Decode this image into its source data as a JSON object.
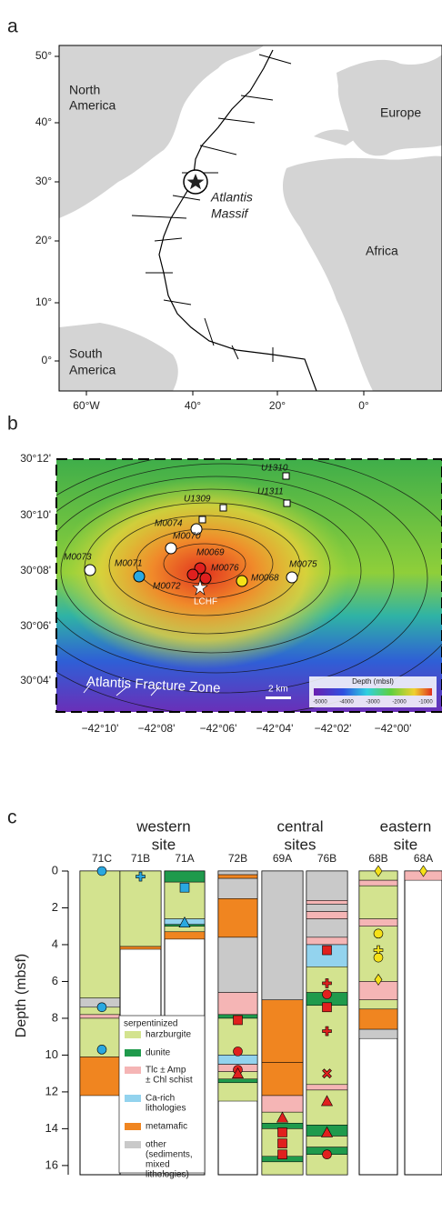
{
  "panel_a": {
    "label": "a",
    "yticks": [
      "50°",
      "40°",
      "30°",
      "20°",
      "10°",
      "0°"
    ],
    "xticks": [
      "60°W",
      "40°",
      "20°",
      "0°"
    ],
    "regions": [
      "North",
      "America",
      "Europe",
      "Africa",
      "South",
      "America"
    ],
    "site": [
      "Atlantis",
      "Massif"
    ]
  },
  "panel_b": {
    "label": "b",
    "yticks": [
      "30°12'",
      "30°10'",
      "30°08'",
      "30°06'",
      "30°04'"
    ],
    "xticks": [
      "−42°10'",
      "−42°08'",
      "−42°06'",
      "−42°04'",
      "−42°02'",
      "−42°00'"
    ],
    "sites": [
      "U1310",
      "U1311",
      "U1309",
      "M0074",
      "M0070",
      "M0069",
      "M0076",
      "M0068",
      "M0075",
      "M0073",
      "M0071",
      "M0072",
      "LCHF"
    ],
    "feature": "Atlantis Fracture Zone",
    "scale": "2 km",
    "legend_title": "Depth (mbsl)",
    "legend_ticks": [
      "-5000",
      "-4000",
      "-3000",
      "-2000",
      "-1000"
    ]
  },
  "chart_data": {
    "type": "lithology",
    "label": "c",
    "ylabel": "Depth (mbsf)",
    "ylim": [
      0,
      16.5
    ],
    "yticks": [
      0,
      2,
      4,
      6,
      8,
      10,
      12,
      14,
      16
    ],
    "groups": [
      [
        "western",
        "site"
      ],
      [
        "central",
        "sites"
      ],
      [
        "eastern",
        "site"
      ]
    ],
    "legend": {
      "title": "serpentinized",
      "items": [
        {
          "label": [
            "harzburgite"
          ],
          "color": "#d3e38f"
        },
        {
          "label": [
            "dunite"
          ],
          "color": "#1f9a4c"
        },
        {
          "label": [
            "Tlc ± Amp",
            "± Chl schist"
          ],
          "color": "#f5b5b5"
        },
        {
          "label": [
            "Ca-rich",
            "lithologies"
          ],
          "color": "#93d3ee"
        },
        {
          "label": [
            "metamafic"
          ],
          "color": "#f08520"
        },
        {
          "label": [
            "other",
            "(sediments,",
            "mixed",
            "lithologies)"
          ],
          "color": "#c9c9c9"
        }
      ]
    },
    "holes": [
      {
        "name": "71C",
        "intervals": [
          [
            0,
            6.9,
            0
          ],
          [
            6.9,
            7.4,
            5
          ],
          [
            7.4,
            7.8,
            0
          ],
          [
            7.8,
            8.0,
            2
          ],
          [
            8.0,
            10.1,
            0
          ],
          [
            10.1,
            12.2,
            4
          ]
        ],
        "markers": [
          {
            "depth": 0,
            "color": "#2aa8e0",
            "shape": "circle"
          },
          {
            "depth": 7.4,
            "color": "#2aa8e0",
            "shape": "circle"
          },
          {
            "depth": 9.7,
            "color": "#2aa8e0",
            "shape": "circle"
          }
        ]
      },
      {
        "name": "71B",
        "intervals": [
          [
            0,
            4.1,
            0
          ],
          [
            4.1,
            4.25,
            4
          ]
        ],
        "markers": [
          {
            "depth": 0.3,
            "color": "#2aa8e0",
            "shape": "cross"
          }
        ]
      },
      {
        "name": "71A",
        "intervals": [
          [
            0,
            0.6,
            1
          ],
          [
            0.6,
            2.6,
            0
          ],
          [
            2.6,
            2.9,
            3
          ],
          [
            2.9,
            3.0,
            1
          ],
          [
            3.0,
            3.3,
            0
          ],
          [
            3.3,
            3.7,
            4
          ]
        ],
        "markers": [
          {
            "depth": 0.9,
            "color": "#2aa8e0",
            "shape": "square"
          },
          {
            "depth": 2.8,
            "color": "#2aa8e0",
            "shape": "triangle"
          }
        ]
      },
      {
        "name": "72B",
        "intervals": [
          [
            0,
            0.2,
            5
          ],
          [
            0.2,
            0.4,
            4
          ],
          [
            0.4,
            1.5,
            5
          ],
          [
            1.5,
            3.6,
            4
          ],
          [
            3.6,
            6.6,
            5
          ],
          [
            6.6,
            7.8,
            2
          ],
          [
            7.8,
            8.0,
            1
          ],
          [
            8.0,
            10.0,
            0
          ],
          [
            10.0,
            10.5,
            3
          ],
          [
            10.5,
            10.9,
            2
          ],
          [
            10.9,
            11.3,
            0
          ],
          [
            11.3,
            11.5,
            1
          ],
          [
            11.5,
            12.5,
            0
          ]
        ],
        "markers": [
          {
            "depth": 8.1,
            "color": "#e0201e",
            "shape": "square"
          },
          {
            "depth": 9.8,
            "color": "#e0201e",
            "shape": "circle"
          },
          {
            "depth": 10.8,
            "color": "#e0201e",
            "shape": "circle"
          },
          {
            "depth": 11.0,
            "color": "#e0201e",
            "shape": "triangle"
          }
        ]
      },
      {
        "name": "69A",
        "intervals": [
          [
            0,
            7.0,
            5
          ],
          [
            7.0,
            10.4,
            4
          ],
          [
            10.4,
            12.2,
            4
          ],
          [
            12.2,
            13.1,
            2
          ],
          [
            13.1,
            13.7,
            0
          ],
          [
            13.7,
            14.0,
            1
          ],
          [
            14.0,
            15.5,
            0
          ],
          [
            15.5,
            15.8,
            1
          ],
          [
            15.8,
            16.5,
            0
          ]
        ],
        "markers": [
          {
            "depth": 13.4,
            "color": "#e0201e",
            "shape": "triangle"
          },
          {
            "depth": 14.2,
            "color": "#e0201e",
            "shape": "square"
          },
          {
            "depth": 14.8,
            "color": "#e0201e",
            "shape": "square"
          },
          {
            "depth": 15.4,
            "color": "#e0201e",
            "shape": "square"
          }
        ]
      },
      {
        "name": "76B",
        "intervals": [
          [
            0,
            1.6,
            5
          ],
          [
            1.6,
            1.8,
            2
          ],
          [
            1.8,
            2.2,
            5
          ],
          [
            2.2,
            2.6,
            2
          ],
          [
            2.6,
            3.6,
            5
          ],
          [
            3.6,
            4.0,
            2
          ],
          [
            4.0,
            5.2,
            3
          ],
          [
            5.2,
            6.6,
            0
          ],
          [
            6.6,
            7.3,
            1
          ],
          [
            7.3,
            11.6,
            0
          ],
          [
            11.6,
            11.9,
            2
          ],
          [
            11.9,
            13.8,
            0
          ],
          [
            13.8,
            14.4,
            1
          ],
          [
            14.4,
            15.0,
            0
          ],
          [
            15.0,
            15.4,
            1
          ],
          [
            15.4,
            16.5,
            0
          ]
        ],
        "markers": [
          {
            "depth": 4.3,
            "color": "#e0201e",
            "shape": "square"
          },
          {
            "depth": 6.1,
            "color": "#e0201e",
            "shape": "cross"
          },
          {
            "depth": 6.7,
            "color": "#e0201e",
            "shape": "circle"
          },
          {
            "depth": 7.4,
            "color": "#e0201e",
            "shape": "square"
          },
          {
            "depth": 8.7,
            "color": "#e0201e",
            "shape": "cross"
          },
          {
            "depth": 11.0,
            "color": "#e0201e",
            "shape": "x"
          },
          {
            "depth": 12.5,
            "color": "#e0201e",
            "shape": "triangle"
          },
          {
            "depth": 14.2,
            "color": "#e0201e",
            "shape": "triangle"
          },
          {
            "depth": 15.4,
            "color": "#e0201e",
            "shape": "circle"
          }
        ]
      },
      {
        "name": "68B",
        "intervals": [
          [
            0,
            0.5,
            0
          ],
          [
            0.5,
            0.8,
            2
          ],
          [
            0.8,
            2.6,
            0
          ],
          [
            2.6,
            3.0,
            2
          ],
          [
            3.0,
            6.0,
            0
          ],
          [
            6.0,
            7.0,
            2
          ],
          [
            7.0,
            7.5,
            0
          ],
          [
            7.5,
            8.6,
            4
          ],
          [
            8.6,
            9.1,
            5
          ]
        ],
        "markers": [
          {
            "depth": 0,
            "color": "#f5e118",
            "shape": "diamond"
          },
          {
            "depth": 3.4,
            "color": "#f5e118",
            "shape": "circle"
          },
          {
            "depth": 4.3,
            "color": "#f5e118",
            "shape": "cross"
          },
          {
            "depth": 4.7,
            "color": "#f5e118",
            "shape": "circle"
          },
          {
            "depth": 5.9,
            "color": "#f5e118",
            "shape": "diamond"
          }
        ]
      },
      {
        "name": "68A",
        "intervals": [
          [
            0,
            0.5,
            2
          ]
        ],
        "markers": [
          {
            "depth": 0,
            "color": "#f5e118",
            "shape": "diamond"
          }
        ]
      }
    ]
  }
}
